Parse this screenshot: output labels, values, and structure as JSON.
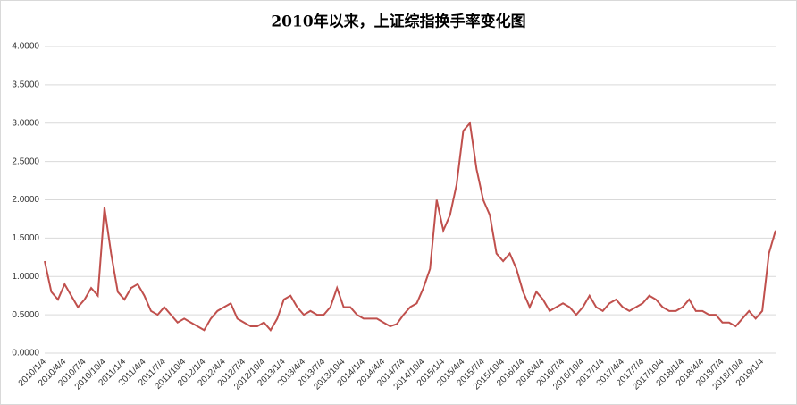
{
  "chart_data": {
    "type": "line",
    "title": "2010年以来，上证综指换手率变化图",
    "categories": [
      "2010/1/4",
      null,
      null,
      "2010/4/4",
      null,
      null,
      "2010/7/4",
      null,
      null,
      "2010/10/4",
      null,
      null,
      "2011/1/4",
      null,
      null,
      "2011/4/4",
      null,
      null,
      "2011/7/4",
      null,
      null,
      "2011/10/4",
      null,
      null,
      "2012/1/4",
      null,
      null,
      "2012/4/4",
      null,
      null,
      "2012/7/4",
      null,
      null,
      "2012/10/4",
      null,
      null,
      "2013/1/4",
      null,
      null,
      "2013/4/4",
      null,
      null,
      "2013/7/4",
      null,
      null,
      "2013/10/4",
      null,
      null,
      "2014/1/4",
      null,
      null,
      "2014/4/4",
      null,
      null,
      "2014/7/4",
      null,
      null,
      "2014/10/4",
      null,
      null,
      "2015/1/4",
      null,
      null,
      "2015/4/4",
      null,
      null,
      "2015/7/4",
      null,
      null,
      "2015/10/4",
      null,
      null,
      "2016/1/4",
      null,
      null,
      "2016/4/4",
      null,
      null,
      "2016/7/4",
      null,
      null,
      "2016/10/4",
      null,
      null,
      "2017/1/4",
      null,
      null,
      "2017/4/4",
      null,
      null,
      "2017/7/4",
      null,
      null,
      "2017/10/4",
      null,
      null,
      "2018/1/4",
      null,
      null,
      "2018/4/4",
      null,
      null,
      "2018/7/4",
      null,
      null,
      "2018/10/4",
      null,
      null,
      "2019/1/4",
      null,
      null
    ],
    "series": [
      {
        "color": "#c0504d",
        "values": [
          1.2,
          0.8,
          0.7,
          0.9,
          0.75,
          0.6,
          0.7,
          0.85,
          0.75,
          1.9,
          1.3,
          0.8,
          0.7,
          0.85,
          0.9,
          0.75,
          0.55,
          0.5,
          0.6,
          0.5,
          0.4,
          0.45,
          0.4,
          0.35,
          0.3,
          0.45,
          0.55,
          0.6,
          0.65,
          0.45,
          0.4,
          0.35,
          0.35,
          0.4,
          0.3,
          0.45,
          0.7,
          0.75,
          0.6,
          0.5,
          0.55,
          0.5,
          0.5,
          0.6,
          0.85,
          0.6,
          0.6,
          0.5,
          0.45,
          0.45,
          0.45,
          0.4,
          0.35,
          0.38,
          0.5,
          0.6,
          0.65,
          0.85,
          1.1,
          2.0,
          1.6,
          1.8,
          2.2,
          2.9,
          3.0,
          2.4,
          2.0,
          1.8,
          1.3,
          1.2,
          1.3,
          1.1,
          0.8,
          0.6,
          0.8,
          0.7,
          0.55,
          0.6,
          0.65,
          0.6,
          0.5,
          0.6,
          0.75,
          0.6,
          0.55,
          0.65,
          0.7,
          0.6,
          0.55,
          0.6,
          0.65,
          0.75,
          0.7,
          0.6,
          0.55,
          0.55,
          0.6,
          0.7,
          0.55,
          0.55,
          0.5,
          0.5,
          0.4,
          0.4,
          0.35,
          0.45,
          0.55,
          0.45,
          0.55,
          1.3,
          1.6
        ]
      }
    ],
    "ylim": [
      0,
      4
    ],
    "yticks": [
      {
        "value": 0,
        "label": "0.0000"
      },
      {
        "value": 0.5,
        "label": "0.5000"
      },
      {
        "value": 1,
        "label": "1.0000"
      },
      {
        "value": 1.5,
        "label": "1.5000"
      },
      {
        "value": 2,
        "label": "2.0000"
      },
      {
        "value": 2.5,
        "label": "2.5000"
      },
      {
        "value": 3,
        "label": "3.0000"
      },
      {
        "value": 3.5,
        "label": "3.5000"
      },
      {
        "value": 4,
        "label": "4.0000"
      }
    ],
    "grid": true
  }
}
